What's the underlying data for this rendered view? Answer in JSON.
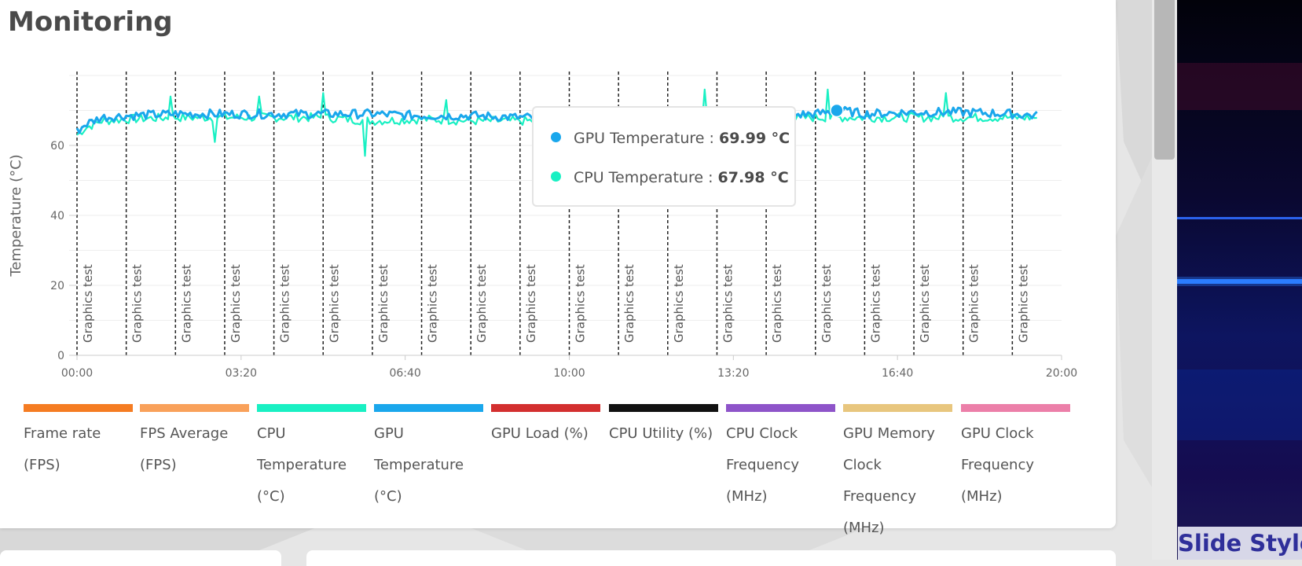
{
  "page": {
    "title": "Monitoring",
    "preview_caption": "Slide Style"
  },
  "tooltip": {
    "rows": [
      {
        "label": "GPU Temperature : ",
        "value": "69.99 °C",
        "color": "#1aa7ec"
      },
      {
        "label": "CPU Temperature : ",
        "value": "67.98 °C",
        "color": "#19f0c3"
      }
    ]
  },
  "legend": [
    {
      "label": "Frame rate (FPS)",
      "color": "#f57c22"
    },
    {
      "label": "FPS Average (FPS)",
      "color": "#f9a15a"
    },
    {
      "label": "CPU Temperature (°C)",
      "color": "#19f0c3"
    },
    {
      "label": "GPU Temperature (°C)",
      "color": "#1aa7ec"
    },
    {
      "label": "GPU Load (%)",
      "color": "#d32f2f"
    },
    {
      "label": "CPU Utility (%)",
      "color": "#111111"
    },
    {
      "label": "CPU Clock Frequency (MHz)",
      "color": "#8e54c9"
    },
    {
      "label": "GPU Memory Clock Frequency (MHz)",
      "color": "#e8c67e"
    },
    {
      "label": "GPU Clock Frequency (MHz)",
      "color": "#ec7fa9"
    }
  ],
  "chart_data": {
    "type": "line",
    "ylabel": "Temperature (°C)",
    "ylim": [
      0,
      80
    ],
    "yticks": [
      0,
      20,
      40,
      60
    ],
    "xlim_seconds": [
      0,
      1200
    ],
    "xticks": [
      "00:00",
      "03:20",
      "06:40",
      "10:00",
      "13:20",
      "16:40",
      "20:00"
    ],
    "grid": true,
    "annotations": {
      "label": "Graphics test",
      "times": [
        "00:00",
        "01:00",
        "02:00",
        "03:00",
        "04:00",
        "05:00",
        "06:00",
        "07:00",
        "08:00",
        "09:00",
        "10:00",
        "11:00",
        "12:00",
        "13:00",
        "14:00",
        "15:00",
        "16:00",
        "17:00",
        "18:00",
        "19:00"
      ]
    },
    "series": [
      {
        "name": "GPU Temperature (°C)",
        "color": "#1aa7ec",
        "x": [
          "00:00",
          "00:10",
          "00:30",
          "01:00",
          "02:00",
          "03:00",
          "04:00",
          "05:00",
          "06:00",
          "07:00",
          "08:00",
          "09:00",
          "10:00",
          "11:00",
          "12:00",
          "13:00",
          "14:00",
          "15:00",
          "15:30",
          "16:00",
          "17:00",
          "18:00",
          "19:00",
          "19:30"
        ],
        "values": [
          64,
          66,
          68,
          68.5,
          69,
          69,
          69,
          69,
          69,
          68.5,
          68.5,
          68,
          68,
          68,
          68,
          68,
          68.5,
          69,
          70,
          69,
          69.5,
          69.5,
          69,
          68.5
        ]
      },
      {
        "name": "CPU Temperature (°C)",
        "color": "#19f0c3",
        "x": [
          "00:00",
          "00:10",
          "00:30",
          "01:00",
          "02:00",
          "03:00",
          "04:00",
          "05:00",
          "06:00",
          "07:00",
          "08:00",
          "09:00",
          "10:00",
          "11:00",
          "12:00",
          "13:00",
          "14:00",
          "15:00",
          "15:30",
          "16:00",
          "17:00",
          "18:00",
          "19:00",
          "19:30"
        ],
        "values": [
          63,
          65,
          67,
          67.5,
          68,
          68,
          68,
          68,
          67,
          67.5,
          67,
          67,
          67,
          67,
          67,
          67,
          67.5,
          68,
          68,
          68,
          68,
          68,
          68,
          68
        ]
      }
    ],
    "spikes": {
      "CPU Temperature (°C)": [
        {
          "x": "01:54",
          "value": 74
        },
        {
          "x": "02:48",
          "value": 61
        },
        {
          "x": "03:43",
          "value": 74
        },
        {
          "x": "04:59",
          "value": 75
        },
        {
          "x": "05:52",
          "value": 57
        },
        {
          "x": "07:30",
          "value": 73
        },
        {
          "x": "12:45",
          "value": 76
        },
        {
          "x": "15:15",
          "value": 76
        },
        {
          "x": "17:40",
          "value": 75
        }
      ]
    },
    "hover_point": {
      "series": "GPU Temperature (°C)",
      "x": "15:26",
      "value": 69.99
    }
  }
}
